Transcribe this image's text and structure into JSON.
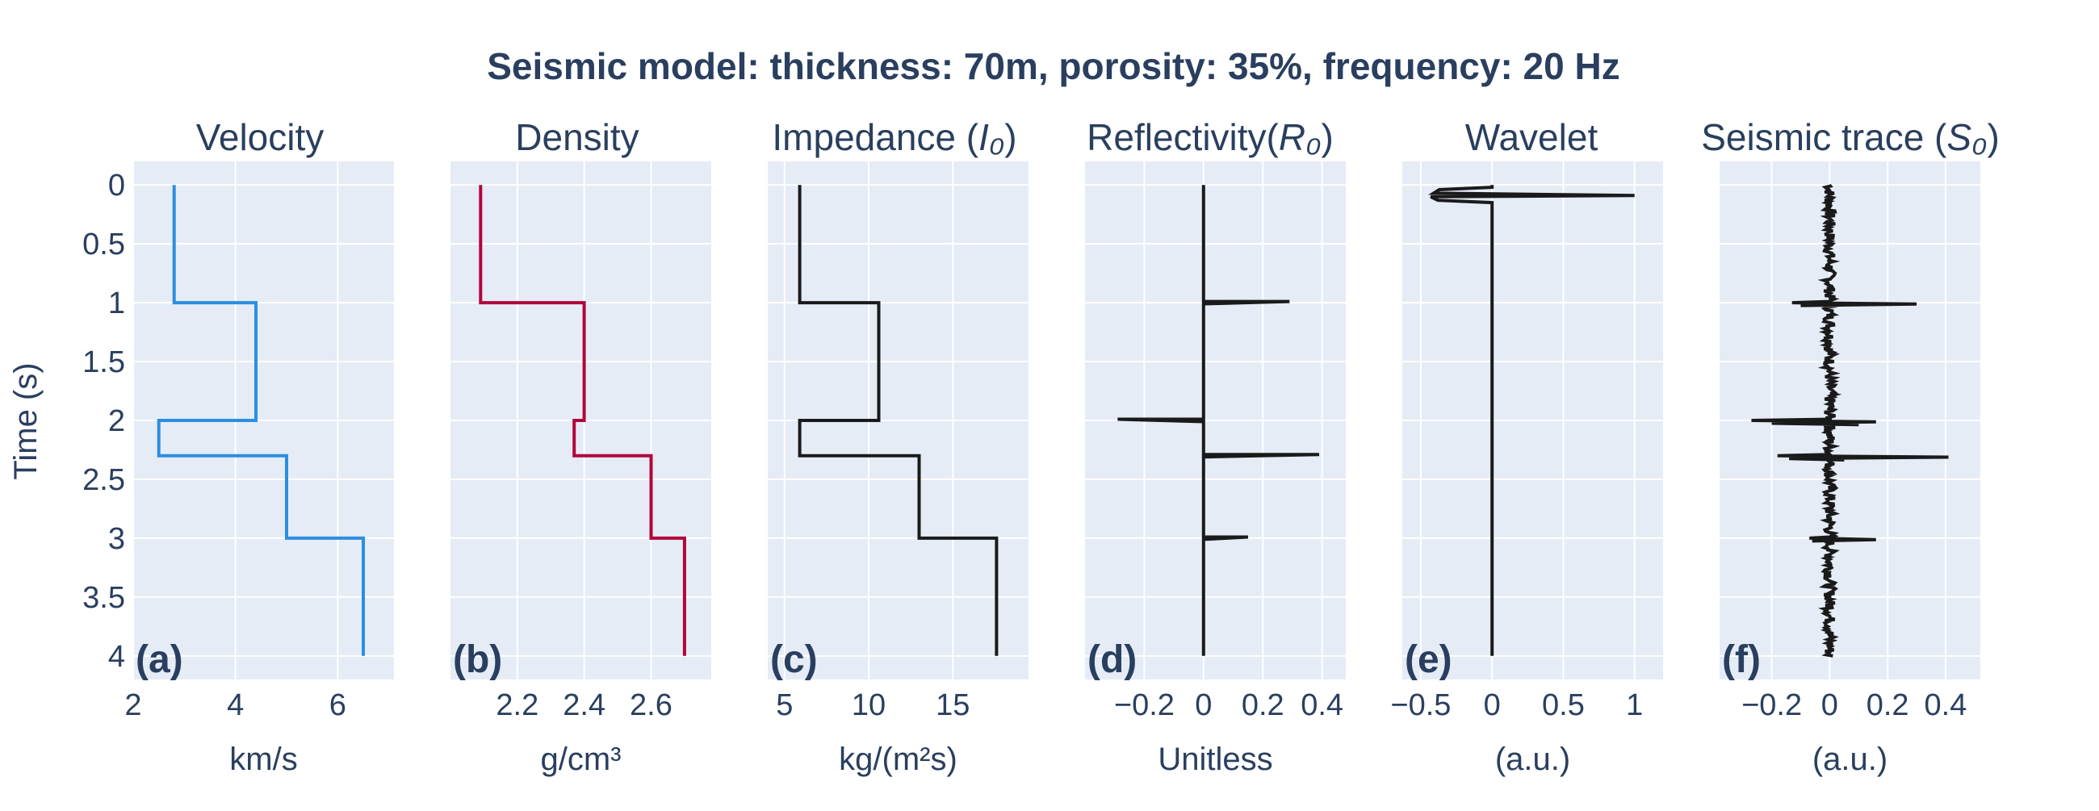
{
  "title": "Seismic model: thickness: 70m, porosity: 35%, frequency: 20 Hz",
  "shared_ylabel": "Time (s)",
  "colors": {
    "plot_bg": "#e5ecf6",
    "grid": "#ffffff",
    "text": "#2a3f5f",
    "velocity": "#2b8ee0",
    "density": "#b0063a",
    "black": "#1a1a1a"
  },
  "chart_data": [
    {
      "panel": "(a)",
      "type": "line",
      "title": "Velocity",
      "xlabel": "km/s",
      "ylabel": "Time (s)",
      "xlim": [
        2,
        7.1
      ],
      "ylim": [
        4.2,
        -0.2
      ],
      "ytick_values": [
        0,
        0.5,
        1,
        1.5,
        2,
        2.5,
        3,
        3.5,
        4
      ],
      "ytick_labels": [
        "0",
        "0.5",
        "1",
        "1.5",
        "2",
        "2.5",
        "3",
        "3.5",
        "4"
      ],
      "xtick_values": [
        2,
        4,
        6
      ],
      "xtick_labels": [
        "2",
        "4",
        "6"
      ],
      "series": [
        {
          "color": "#2b8ee0",
          "x": [
            2.8,
            2.8,
            4.4,
            4.4,
            2.5,
            2.5,
            5.0,
            5.0,
            6.5,
            6.5
          ],
          "y": [
            0,
            1.0,
            1.0,
            2.0,
            2.0,
            2.3,
            2.3,
            3.0,
            3.0,
            4.0
          ]
        }
      ]
    },
    {
      "panel": "(b)",
      "type": "line",
      "title": "Density",
      "xlabel": "g/cm³",
      "xlim": [
        2.0,
        2.78
      ],
      "ylim": [
        4.2,
        -0.2
      ],
      "xtick_values": [
        2.2,
        2.4,
        2.6
      ],
      "xtick_labels": [
        "2.2",
        "2.4",
        "2.6"
      ],
      "series": [
        {
          "color": "#b0063a",
          "x": [
            2.09,
            2.09,
            2.4,
            2.4,
            2.37,
            2.37,
            2.6,
            2.6,
            2.7,
            2.7
          ],
          "y": [
            0,
            1.0,
            1.0,
            2.0,
            2.0,
            2.3,
            2.3,
            3.0,
            3.0,
            4.0
          ]
        }
      ]
    },
    {
      "panel": "(c)",
      "type": "line",
      "title": "Impedance (I₀)",
      "title_main": "Impedance (",
      "title_sym": "I₀",
      "title_end": ")",
      "xlabel": "kg/(m²s)",
      "xlim": [
        4.0,
        19.5
      ],
      "ylim": [
        4.2,
        -0.2
      ],
      "xtick_values": [
        5,
        10,
        15
      ],
      "xtick_labels": [
        "5",
        "10",
        "15"
      ],
      "series": [
        {
          "color": "#1a1a1a",
          "x": [
            5.9,
            5.9,
            10.6,
            10.6,
            5.9,
            5.9,
            13.0,
            13.0,
            17.6,
            17.6
          ],
          "y": [
            0,
            1.0,
            1.0,
            2.0,
            2.0,
            2.3,
            2.3,
            3.0,
            3.0,
            4.0
          ]
        }
      ]
    },
    {
      "panel": "(d)",
      "type": "line",
      "title": "Reflectivity(R₀)",
      "title_main": "Reflectivity(",
      "title_sym": "R₀",
      "title_end": ")",
      "xlabel": "Unitless",
      "xlim": [
        -0.4,
        0.48
      ],
      "ylim": [
        4.2,
        -0.2
      ],
      "xtick_values": [
        -0.2,
        0,
        0.2,
        0.4
      ],
      "xtick_labels": [
        "−0.2",
        "0",
        "0.2",
        "0.4"
      ],
      "series": [
        {
          "color": "#1a1a1a",
          "x": [
            0,
            0,
            0.29,
            0,
            0,
            -0.29,
            0,
            0,
            0.39,
            0,
            0,
            0.15,
            0,
            0
          ],
          "y": [
            0,
            0.99,
            0.99,
            1.01,
            1.99,
            1.99,
            2.01,
            2.29,
            2.29,
            2.31,
            2.99,
            2.99,
            3.01,
            4.0
          ]
        }
      ]
    },
    {
      "panel": "(e)",
      "type": "line",
      "title": "Wavelet",
      "xlabel": "(a.u.)",
      "xlim": [
        -0.63,
        1.2
      ],
      "ylim": [
        4.2,
        -0.2
      ],
      "xtick_values": [
        -0.5,
        0,
        0.5,
        1
      ],
      "xtick_labels": [
        "−0.5",
        "0",
        "0.5",
        "1"
      ],
      "series": [
        {
          "color": "#1a1a1a",
          "x": [
            0,
            0,
            -0.37,
            -0.41,
            1.0,
            -0.43,
            -0.38,
            0,
            0,
            0
          ],
          "y": [
            0,
            0.02,
            0.04,
            0.07,
            0.09,
            0.1,
            0.13,
            0.15,
            0.2,
            4.0
          ]
        }
      ]
    },
    {
      "panel": "(f)",
      "type": "line",
      "title": "Seismic trace (S₀)",
      "title_main": "Seismic trace (",
      "title_sym": "S₀",
      "title_end": ")",
      "xlabel": "(a.u.)",
      "xlim": [
        -0.38,
        0.52
      ],
      "ylim": [
        4.2,
        -0.2
      ],
      "xtick_values": [
        -0.2,
        0,
        0.2,
        0.4
      ],
      "xtick_labels": [
        "−0.2",
        "0",
        "0.2",
        "0.4"
      ],
      "series": [
        {
          "color": "#1a1a1a",
          "noise_amplitude": 0.02,
          "spikes": [
            {
              "y": 1.0,
              "x": [
                -0.13,
                0.3,
                -0.1
              ]
            },
            {
              "y": 2.0,
              "x": [
                -0.27,
                0.16,
                -0.2,
                0.1
              ]
            },
            {
              "y": 2.3,
              "x": [
                -0.18,
                0.41,
                -0.14,
                0.05
              ]
            },
            {
              "y": 3.0,
              "x": [
                -0.07,
                0.16,
                -0.06
              ]
            }
          ]
        }
      ]
    }
  ]
}
